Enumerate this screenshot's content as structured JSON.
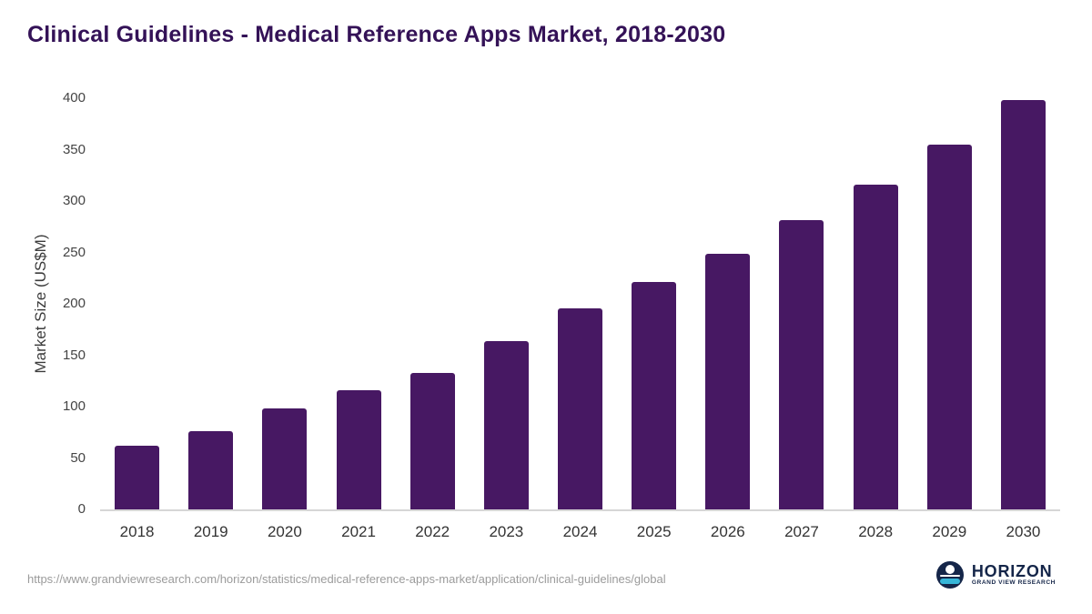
{
  "title": "Clinical Guidelines - Medical Reference Apps Market, 2018-2030",
  "chart_data": {
    "type": "bar",
    "categories": [
      "2018",
      "2019",
      "2020",
      "2021",
      "2022",
      "2023",
      "2024",
      "2025",
      "2026",
      "2027",
      "2028",
      "2029",
      "2030"
    ],
    "values": [
      62,
      76,
      98,
      116,
      133,
      164,
      196,
      221,
      249,
      281,
      316,
      355,
      398
    ],
    "title": "Clinical Guidelines - Medical Reference Apps Market, 2018-2030",
    "xlabel": "",
    "ylabel": "Market Size (US$M)",
    "ylim": [
      0,
      400
    ],
    "yticks": [
      0,
      50,
      100,
      150,
      200,
      250,
      300,
      350,
      400
    ],
    "bar_color": "#471863",
    "grid": false,
    "legend": false
  },
  "colors": {
    "title": "#341257",
    "bar": "#471863",
    "axis_text": "#444444",
    "baseline": "#d6d6d6",
    "logo_navy": "#152649",
    "logo_teal": "#36b6d8"
  },
  "footer": {
    "source_url": "https://www.grandviewresearch.com/horizon/statistics/medical-reference-apps-market/application/clinical-guidelines/global",
    "logo_title": "HORIZON",
    "logo_subtitle": "GRAND VIEW RESEARCH"
  }
}
